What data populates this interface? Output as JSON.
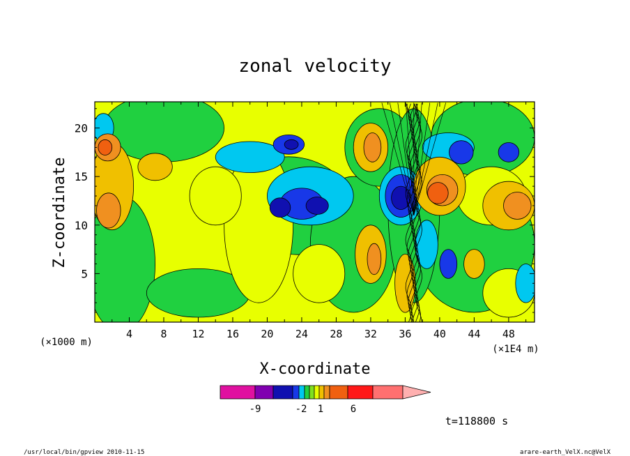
{
  "chart_data": {
    "type": "heatmap",
    "title": "zonal velocity",
    "xlabel": "X-coordinate",
    "ylabel": "Z-coordinate",
    "x_unit_left": "(×1000 m)",
    "x_unit_right": "(×1E4 m)",
    "xlim": [
      0,
      51
    ],
    "ylim": [
      0,
      22.7
    ],
    "x_ticks": [
      "4",
      "8",
      "12",
      "16",
      "20",
      "24",
      "28",
      "32",
      "36",
      "40",
      "44",
      "48"
    ],
    "y_ticks": [
      "5",
      "10",
      "15",
      "20"
    ],
    "colorbar": {
      "tick_labels": [
        "-9",
        "-2",
        "1",
        "6"
      ],
      "colors": [
        "#e010a0",
        "#8000b0",
        "#1010b0",
        "#1838e8",
        "#00c8f0",
        "#20d040",
        "#80e020",
        "#e8ff00",
        "#f0c000",
        "#f09020",
        "#f06010",
        "#ff1818",
        "#ff7070",
        "#ffb0b0"
      ]
    },
    "levels": {
      "neg_strong": "#1010b0",
      "neg_mid": "#1838e8",
      "neg_weak": "#00c8f0",
      "near_zero_neg": "#20d040",
      "near_zero_pos": "#e8ff00",
      "pos_weak": "#f0c000",
      "pos_mid": "#f09020",
      "pos_strong": "#f06010"
    },
    "annotation_time": "t=118800 s",
    "footer_left": "/usr/local/bin/gpview   2010-11-15",
    "footer_right": "arare-earth_VelX.nc@VelX"
  }
}
